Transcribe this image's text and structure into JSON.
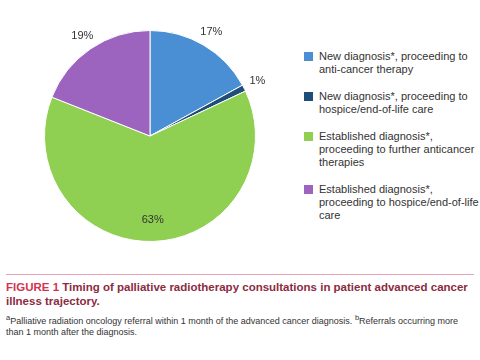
{
  "chart_data": {
    "type": "pie",
    "figure_label": "FIGURE 1",
    "title": "Timing of palliative radiotherapy consultations in patient advanced cancer illness trajectory.",
    "footnotes": [
      {
        "mark": "a",
        "text": "Palliative radiation oncology referral within 1 month of the advanced cancer diagnosis."
      },
      {
        "mark": "b",
        "text": "Referrals occurring more than 1 month after the diagnosis."
      }
    ],
    "categories": [
      "New diagnosis*, proceeding to anti-cancer therapy",
      "New diagnosis*, proceeding to hospice/end-of-life care",
      "Established diagnosis*, proceeding to further anticancer therapies",
      "Established diagnosis*, proceeding to hospice/end-of-life care"
    ],
    "values": [
      17,
      1,
      63,
      19
    ],
    "value_labels": [
      "17%",
      "1%",
      "63%",
      "19%"
    ],
    "colors": [
      "#4a8fd4",
      "#1f4e79",
      "#8fcf52",
      "#9c63bf"
    ],
    "data_labels": true,
    "legend": "right"
  }
}
